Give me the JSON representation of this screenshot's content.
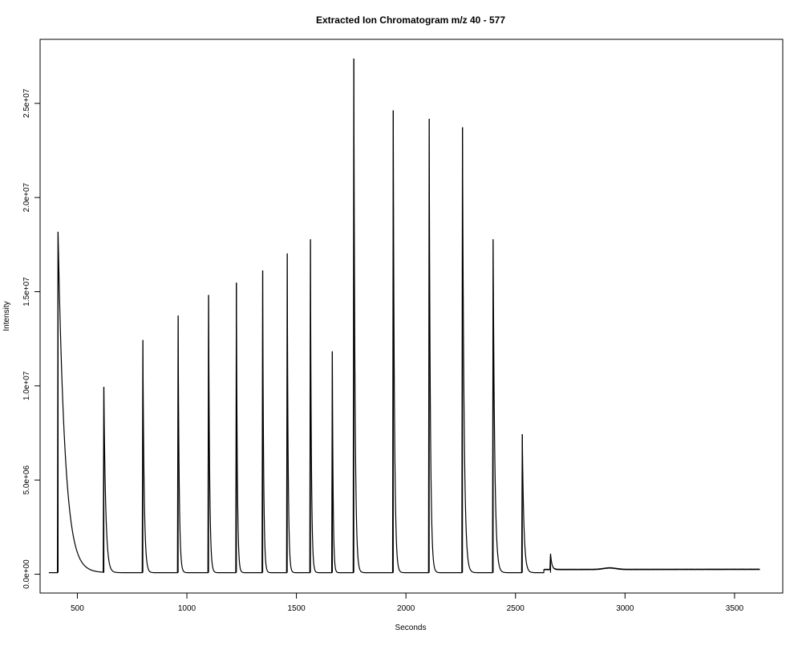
{
  "chart_data": {
    "type": "line",
    "title": "Extracted Ion Chromatogram  m/z  40 - 577",
    "xlabel": "Seconds",
    "ylabel": "Intensity",
    "xlim": [
      330,
      3720
    ],
    "ylim": [
      -1000000,
      28400000
    ],
    "x_ticks": [
      500,
      1000,
      1500,
      2000,
      2500,
      3000,
      3500
    ],
    "x_tick_labels": [
      "500",
      "1000",
      "1500",
      "2000",
      "2500",
      "3000",
      "3500"
    ],
    "y_ticks": [
      0,
      5000000,
      10000000,
      15000000,
      20000000,
      25000000
    ],
    "y_tick_labels": [
      "0.0e+00",
      "5.0e+06",
      "1.0e+07",
      "1.5e+07",
      "2.0e+07",
      "2.5e+07"
    ],
    "grid": false,
    "legend": "none",
    "series": [
      {
        "color": "#000000",
        "baseline": 80000,
        "x_start": 370,
        "x_end": 3615,
        "peaks": [
          {
            "x": 412,
            "height": 18100000,
            "tail": 260
          },
          {
            "x": 621,
            "height": 9850000,
            "tail": 70
          },
          {
            "x": 799,
            "height": 12350000,
            "tail": 50
          },
          {
            "x": 960,
            "height": 13650000,
            "tail": 40
          },
          {
            "x": 1099,
            "height": 14750000,
            "tail": 40
          },
          {
            "x": 1226,
            "height": 15400000,
            "tail": 35
          },
          {
            "x": 1346,
            "height": 16050000,
            "tail": 35
          },
          {
            "x": 1458,
            "height": 16950000,
            "tail": 35
          },
          {
            "x": 1564,
            "height": 17700000,
            "tail": 35
          },
          {
            "x": 1664,
            "height": 11750000,
            "tail": 30
          },
          {
            "x": 1762,
            "height": 27300000,
            "tail": 45
          },
          {
            "x": 1942,
            "height": 24550000,
            "tail": 45
          },
          {
            "x": 2106,
            "height": 24100000,
            "tail": 45
          },
          {
            "x": 2258,
            "height": 23650000,
            "tail": 60
          },
          {
            "x": 2398,
            "height": 17700000,
            "tail": 60
          },
          {
            "x": 2531,
            "height": 7350000,
            "tail": 60
          },
          {
            "x": 2660,
            "height": 850000,
            "tail": 50
          }
        ],
        "tail_level": {
          "from": 2630,
          "start_value": 250000,
          "end_value": 280000,
          "bump_x": 2930,
          "bump_height": 80000
        }
      }
    ]
  }
}
